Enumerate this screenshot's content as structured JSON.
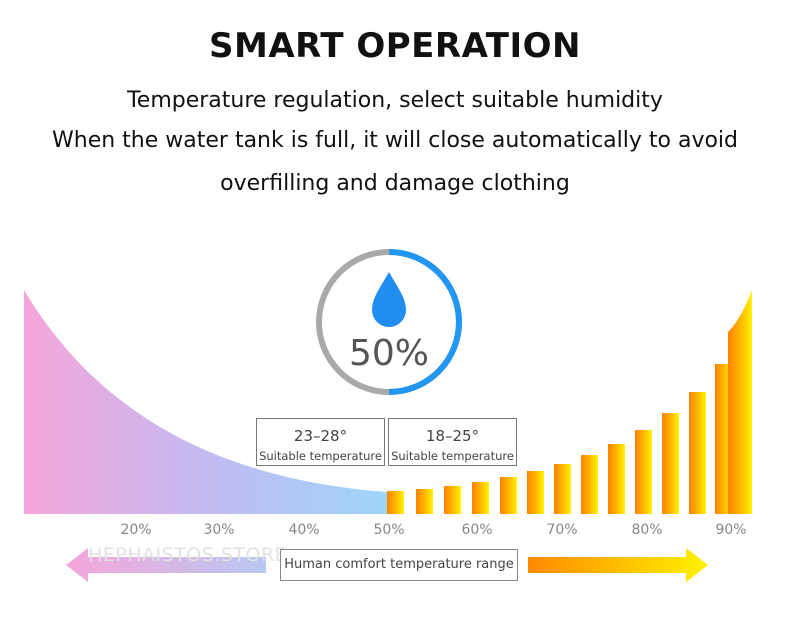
{
  "title": "SMART OPERATION",
  "description": [
    "Temperature regulation, select suitable humidity",
    "When the water tank is full, it will close automatically to avoid",
    "overfilling and damage clothing"
  ],
  "humidity_dial": {
    "value": "50%",
    "icon": "water-drop-icon",
    "ring_color": "#2196f3"
  },
  "temperature_boxes": [
    {
      "range": "23–28°",
      "label": "Suitable temperature"
    },
    {
      "range": "18–25°",
      "label": "Suitable temperature"
    }
  ],
  "humidity_scale": [
    "20%",
    "30%",
    "40%",
    "50%",
    "60%",
    "70%",
    "80%",
    "90%"
  ],
  "comfort_range_label": "Human comfort temperature range",
  "watermark": "HEPHAISTOS.STORE",
  "colors": {
    "pink": "#f7a8d8",
    "blue": "#9ed5fb",
    "orange": "#ff8a00",
    "yellow": "#fff200"
  }
}
